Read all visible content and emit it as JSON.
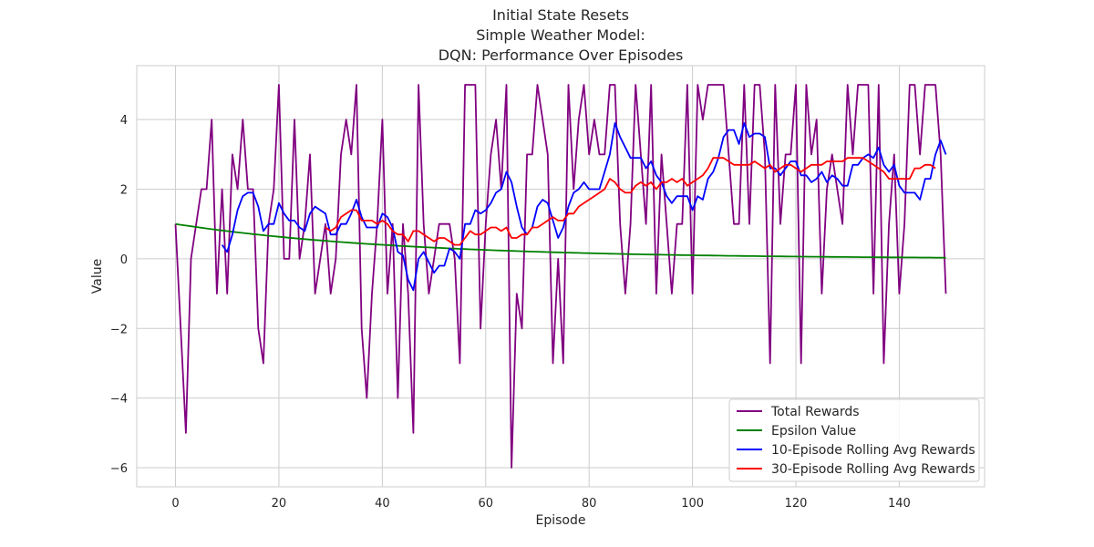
{
  "chart_data": {
    "type": "line",
    "title_lines": [
      "Initial State Resets",
      "Simple Weather Model:",
      "DQN: Performance Over Episodes"
    ],
    "xlabel": "Episode",
    "ylabel": "Value",
    "xlim": [
      -7.5,
      156.5
    ],
    "ylim": [
      -6.55,
      5.55
    ],
    "xticks": [
      0,
      20,
      40,
      60,
      80,
      100,
      120,
      140
    ],
    "yticks": [
      -6,
      -4,
      -2,
      0,
      2,
      4
    ],
    "ytick_labels": [
      "−6",
      "−4",
      "−2",
      "0",
      "2",
      "4"
    ],
    "grid": true,
    "legend_position": "lower-right",
    "series": [
      {
        "name": "Total Rewards",
        "color": "#800080",
        "x_start": 0,
        "values": [
          1,
          -2,
          -5,
          0,
          1,
          2,
          2,
          4,
          -1,
          2,
          -1,
          3,
          2,
          4,
          2,
          2,
          -2,
          -3,
          1,
          2,
          5,
          0,
          0,
          4,
          0,
          1,
          3,
          -1,
          0,
          1,
          -1,
          0,
          3,
          4,
          3,
          5,
          -2,
          -4,
          -1,
          1,
          4,
          -1,
          1,
          -4,
          1,
          -1,
          -5,
          5,
          1,
          -1,
          0,
          1,
          1,
          1,
          0,
          -3,
          5,
          5,
          5,
          -2,
          1,
          3,
          4,
          2,
          5,
          -6,
          -1,
          -2,
          3,
          3,
          5,
          4,
          3,
          -3,
          0,
          -3,
          5,
          2,
          4,
          5,
          3,
          4,
          3,
          3,
          5,
          5,
          1,
          -1,
          1,
          5,
          3,
          1,
          5,
          -1,
          3,
          1,
          -1,
          1,
          1,
          5,
          -1,
          5,
          4,
          5,
          5,
          5,
          5,
          3,
          1,
          1,
          5,
          1,
          5,
          5,
          3,
          -3,
          5,
          1,
          3,
          3,
          5,
          -3,
          5,
          3,
          4,
          -1,
          2,
          3,
          2,
          1,
          5,
          3,
          5,
          5,
          5,
          -1,
          5,
          -3,
          1,
          3,
          -1,
          1,
          5,
          5,
          3,
          5,
          5,
          5,
          3,
          -1
        ]
      },
      {
        "name": "Epsilon Value",
        "color": "#008000",
        "x_start": 0,
        "decay": 0.9775,
        "values": []
      },
      {
        "name": "10-Episode Rolling Avg Rewards",
        "color": "#0000ff",
        "x_start": 9,
        "values": [
          0.4,
          0.2,
          0.7,
          1.4,
          1.8,
          1.9,
          1.9,
          1.5,
          0.8,
          1.0,
          1.0,
          1.6,
          1.3,
          1.1,
          1.1,
          0.9,
          0.8,
          1.3,
          1.5,
          1.4,
          1.3,
          0.7,
          0.7,
          1.0,
          1.0,
          1.3,
          1.7,
          1.2,
          0.9,
          0.9,
          0.9,
          1.3,
          1.2,
          0.9,
          0.2,
          0.1,
          -0.6,
          -0.9,
          0.0,
          0.2,
          -0.1,
          -0.4,
          -0.2,
          -0.2,
          0.3,
          0.2,
          0.0,
          1.0,
          1.0,
          1.4,
          1.3,
          1.4,
          1.6,
          1.9,
          2.0,
          2.5,
          2.2,
          1.5,
          0.9,
          0.7,
          0.9,
          1.5,
          1.7,
          1.6,
          1.1,
          0.6,
          0.9,
          1.5,
          1.9,
          2.0,
          2.2,
          2.0,
          2.0,
          2.0,
          2.5,
          3.0,
          3.9,
          3.5,
          3.2,
          2.9,
          2.9,
          2.9,
          2.6,
          2.8,
          2.4,
          2.2,
          1.8,
          1.6,
          1.8,
          1.8,
          1.8,
          1.4,
          1.8,
          1.7,
          2.3,
          2.5,
          2.9,
          3.5,
          3.7,
          3.7,
          3.3,
          3.9,
          3.5,
          3.6,
          3.6,
          3.5,
          2.6,
          2.6,
          2.4,
          2.6,
          2.8,
          2.8,
          2.4,
          2.4,
          2.2,
          2.3,
          2.5,
          2.2,
          2.4,
          2.3,
          2.1,
          2.1,
          2.7,
          2.7,
          2.9,
          3.0,
          2.9,
          3.2,
          2.7,
          2.5,
          2.7,
          2.1,
          1.9,
          1.9,
          1.9,
          1.7,
          2.3,
          2.3,
          3.0,
          3.4,
          3.0
        ]
      },
      {
        "name": "30-Episode Rolling Avg Rewards",
        "color": "#ff0000",
        "x_start": 29,
        "values": [
          0.9,
          0.8,
          0.9,
          1.2,
          1.3,
          1.4,
          1.4,
          1.1,
          1.1,
          1.1,
          1.0,
          1.1,
          1.0,
          0.8,
          0.7,
          0.7,
          0.5,
          0.8,
          0.8,
          0.7,
          0.6,
          0.5,
          0.6,
          0.6,
          0.5,
          0.4,
          0.4,
          0.6,
          0.8,
          0.7,
          0.7,
          0.8,
          0.9,
          0.9,
          0.8,
          0.9,
          0.6,
          0.6,
          0.7,
          0.7,
          0.9,
          0.9,
          1.0,
          1.1,
          1.2,
          1.1,
          1.1,
          1.3,
          1.3,
          1.5,
          1.6,
          1.7,
          1.8,
          1.9,
          2.0,
          2.3,
          2.2,
          2.0,
          1.9,
          1.9,
          2.1,
          2.2,
          2.1,
          2.2,
          2.0,
          2.2,
          2.2,
          2.3,
          2.2,
          2.3,
          2.1,
          2.2,
          2.3,
          2.4,
          2.6,
          2.9,
          2.9,
          2.9,
          2.8,
          2.7,
          2.7,
          2.7,
          2.7,
          2.8,
          2.7,
          2.6,
          2.7,
          2.5,
          2.6,
          2.7,
          2.7,
          2.6,
          2.5,
          2.6,
          2.7,
          2.7,
          2.7,
          2.8,
          2.8,
          2.8,
          2.8,
          2.9,
          2.9,
          2.9,
          2.9,
          2.8,
          2.7,
          2.6,
          2.5,
          2.3,
          2.3,
          2.3,
          2.3,
          2.3,
          2.6,
          2.6,
          2.7,
          2.7,
          2.6
        ]
      }
    ]
  }
}
